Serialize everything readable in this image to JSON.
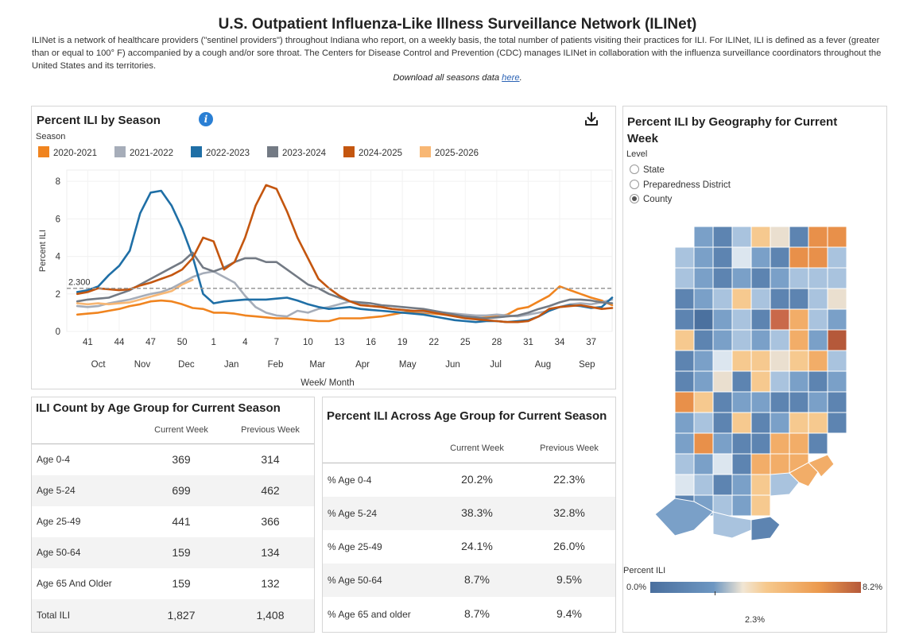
{
  "page": {
    "title": "U.S. Outpatient Influenza-Like Illness Surveillance Network (ILINet)",
    "description": " ILINet is a network of healthcare providers (\"sentinel providers\") throughout Indiana who report, on a weekly basis, the total number of patients visiting their practices for ILI. For ILINet, ILI is defined as a fever (greater than or equal to 100° F) accompanied by a cough and/or sore throat. The Centers for Disease Control and Prevention (CDC) manages ILINet in collaboration with the influenza surveillance coordinators throughout the United States and its territories.",
    "download_prefix": "Download all seasons data ",
    "download_link": "here",
    "download_suffix": "."
  },
  "chart_panel": {
    "title": "Percent ILI by Season",
    "info_icon": "info-icon",
    "download_icon": "download-icon",
    "season_label": "Season",
    "legend": [
      {
        "label": "2020-2021",
        "color": "#f0841f"
      },
      {
        "label": "2021-2022",
        "color": "#a6adb9"
      },
      {
        "label": "2022-2023",
        "color": "#1f6fa6"
      },
      {
        "label": "2023-2024",
        "color": "#737a84"
      },
      {
        "label": "2024-2025",
        "color": "#c4560f"
      },
      {
        "label": "2025-2026",
        "color": "#f8b774"
      }
    ]
  },
  "chart_data": {
    "type": "line",
    "title": "Percent ILI by Season",
    "xlabel": "Week/ Month",
    "ylabel": "Percent ILI",
    "ylim": [
      0,
      8.6
    ],
    "yticks": [
      0,
      2,
      4,
      6,
      8
    ],
    "x_range": [
      39,
      91
    ],
    "week_ticks": [
      {
        "x": 41,
        "label": "41"
      },
      {
        "x": 44,
        "label": "44"
      },
      {
        "x": 47,
        "label": "47"
      },
      {
        "x": 50,
        "label": "50"
      },
      {
        "x": 53,
        "label": "1"
      },
      {
        "x": 56,
        "label": "4"
      },
      {
        "x": 59,
        "label": "7"
      },
      {
        "x": 62,
        "label": "10"
      },
      {
        "x": 65,
        "label": "13"
      },
      {
        "x": 68,
        "label": "16"
      },
      {
        "x": 71,
        "label": "19"
      },
      {
        "x": 74,
        "label": "22"
      },
      {
        "x": 77,
        "label": "25"
      },
      {
        "x": 80,
        "label": "28"
      },
      {
        "x": 83,
        "label": "31"
      },
      {
        "x": 86,
        "label": "34"
      },
      {
        "x": 89,
        "label": "37"
      }
    ],
    "month_ticks": [
      {
        "x": 42,
        "label": "Oct"
      },
      {
        "x": 46.2,
        "label": "Nov"
      },
      {
        "x": 50.4,
        "label": "Dec"
      },
      {
        "x": 54.7,
        "label": "Jan"
      },
      {
        "x": 58.9,
        "label": "Feb"
      },
      {
        "x": 62.9,
        "label": "Mar"
      },
      {
        "x": 67.2,
        "label": "Apr"
      },
      {
        "x": 71.5,
        "label": "May"
      },
      {
        "x": 75.8,
        "label": "Jun"
      },
      {
        "x": 79.9,
        "label": "Jul"
      },
      {
        "x": 84.4,
        "label": "Aug"
      },
      {
        "x": 88.6,
        "label": "Sep"
      }
    ],
    "baseline": {
      "value": 2.3,
      "label": "2.300"
    },
    "series": [
      {
        "name": "2020-2021",
        "color": "#f0841f",
        "x_start": 40,
        "values": [
          0.9,
          0.95,
          1.0,
          1.1,
          1.2,
          1.35,
          1.45,
          1.6,
          1.65,
          1.6,
          1.45,
          1.25,
          1.2,
          1.0,
          1.0,
          0.95,
          0.85,
          0.8,
          0.75,
          0.7,
          0.7,
          0.65,
          0.6,
          0.55,
          0.55,
          0.7,
          0.7,
          0.7,
          0.75,
          0.8,
          0.9,
          1.0,
          1.05,
          1.0,
          0.95,
          0.9,
          0.85,
          0.75,
          0.7,
          0.75,
          0.8,
          0.9,
          1.2,
          1.3,
          1.6,
          1.9,
          2.4,
          2.2,
          2.0,
          1.8,
          1.65,
          1.4
        ]
      },
      {
        "name": "2021-2022",
        "color": "#a6adb9",
        "x_start": 40,
        "values": [
          1.35,
          1.3,
          1.35,
          1.5,
          1.6,
          1.7,
          1.85,
          2.0,
          2.1,
          2.3,
          2.6,
          2.9,
          3.1,
          3.2,
          2.9,
          2.6,
          1.9,
          1.3,
          1.0,
          0.85,
          0.8,
          1.1,
          1.0,
          1.2,
          1.3,
          1.45,
          1.6,
          1.5,
          1.35,
          1.3,
          1.2,
          1.15,
          1.1,
          1.05,
          1.0,
          1.0,
          0.95,
          0.9,
          0.85,
          0.85,
          0.9,
          0.85,
          0.8,
          0.9,
          1.0,
          1.1,
          1.3,
          1.45,
          1.5,
          1.45,
          1.55,
          1.7
        ]
      },
      {
        "name": "2022-2023",
        "color": "#1f6fa6",
        "x_start": 40,
        "values": [
          2.1,
          2.2,
          2.4,
          3.0,
          3.5,
          4.3,
          6.3,
          7.4,
          7.5,
          6.7,
          5.5,
          4.0,
          2.0,
          1.5,
          1.6,
          1.65,
          1.7,
          1.7,
          1.7,
          1.75,
          1.8,
          1.65,
          1.45,
          1.3,
          1.2,
          1.25,
          1.3,
          1.2,
          1.15,
          1.1,
          1.05,
          1.0,
          0.95,
          0.9,
          0.8,
          0.7,
          0.6,
          0.55,
          0.5,
          0.55,
          0.55,
          0.5,
          0.55,
          0.6,
          0.8,
          1.1,
          1.3,
          1.4,
          1.35,
          1.25,
          1.3,
          1.8
        ]
      },
      {
        "name": "2023-2024",
        "color": "#737a84",
        "x_start": 40,
        "values": [
          1.6,
          1.7,
          1.75,
          1.8,
          2.0,
          2.2,
          2.5,
          2.8,
          3.1,
          3.4,
          3.7,
          4.2,
          3.4,
          3.2,
          3.4,
          3.7,
          3.9,
          3.9,
          3.7,
          3.7,
          3.3,
          2.9,
          2.5,
          2.3,
          2.0,
          1.8,
          1.6,
          1.55,
          1.5,
          1.4,
          1.35,
          1.3,
          1.25,
          1.2,
          1.1,
          1.0,
          0.9,
          0.8,
          0.75,
          0.7,
          0.75,
          0.8,
          0.85,
          1.0,
          1.2,
          1.35,
          1.55,
          1.7,
          1.7,
          1.65,
          1.55,
          1.5
        ]
      },
      {
        "name": "2024-2025",
        "color": "#c4560f",
        "x_start": 40,
        "values": [
          2.0,
          2.1,
          2.3,
          2.25,
          2.2,
          2.25,
          2.45,
          2.6,
          2.8,
          3.0,
          3.3,
          3.9,
          5.0,
          4.8,
          3.3,
          3.7,
          5.0,
          6.7,
          7.8,
          7.6,
          6.4,
          5.0,
          3.9,
          2.8,
          2.3,
          1.9,
          1.6,
          1.4,
          1.35,
          1.3,
          1.2,
          1.15,
          1.1,
          1.1,
          1.0,
          0.9,
          0.8,
          0.7,
          0.65,
          0.6,
          0.55,
          0.5,
          0.5,
          0.55,
          0.8,
          1.2,
          1.3,
          1.35,
          1.4,
          1.3,
          1.2,
          1.25
        ]
      },
      {
        "name": "2025-2026",
        "color": "#f8b774",
        "x_start": 40,
        "values": [
          1.5,
          1.45,
          1.5,
          1.45,
          1.5,
          1.55,
          1.7,
          1.85,
          2.0,
          2.15,
          2.5,
          2.75
        ]
      }
    ]
  },
  "map_panel": {
    "title_line1": "Percent ILI by Geography for Current",
    "title_line2": "Week",
    "level_label": "Level",
    "options": [
      {
        "label": "State",
        "selected": false
      },
      {
        "label": "Preparedness District",
        "selected": false
      },
      {
        "label": "County",
        "selected": true
      }
    ],
    "scale_title": "Percent  ILI",
    "scale_min": "0.0%",
    "scale_max": "8.2%",
    "scale_mid": "2.3%"
  },
  "count_table": {
    "title": "ILI Count by Age Group for Current Season",
    "col1": "Current Week",
    "col2": "Previous Week",
    "rows": [
      {
        "label": "Age 0-4",
        "current": "369",
        "previous": "314"
      },
      {
        "label": "Age 5-24",
        "current": "699",
        "previous": "462"
      },
      {
        "label": "Age 25-49",
        "current": "441",
        "previous": "366"
      },
      {
        "label": "Age 50-64",
        "current": "159",
        "previous": "134"
      },
      {
        "label": "Age 65 And Older",
        "current": "159",
        "previous": "132"
      },
      {
        "label": "Total ILI",
        "current": "1,827",
        "previous": "1,408"
      }
    ]
  },
  "pct_table": {
    "title": "Percent ILI Across Age Group for Current Season",
    "col1": "Current Week",
    "col2": "Previous Week",
    "rows": [
      {
        "label": "% Age 0-4",
        "current": "20.2%",
        "previous": "22.3%"
      },
      {
        "label": "% Age 5-24",
        "current": "38.3%",
        "previous": "32.8%"
      },
      {
        "label": "% Age 25-49",
        "current": "24.1%",
        "previous": "26.0%"
      },
      {
        "label": "% Age 50-64",
        "current": "8.7%",
        "previous": "9.5%"
      },
      {
        "label": "% Age 65 and older",
        "current": "8.7%",
        "previous": "9.4%"
      }
    ]
  }
}
